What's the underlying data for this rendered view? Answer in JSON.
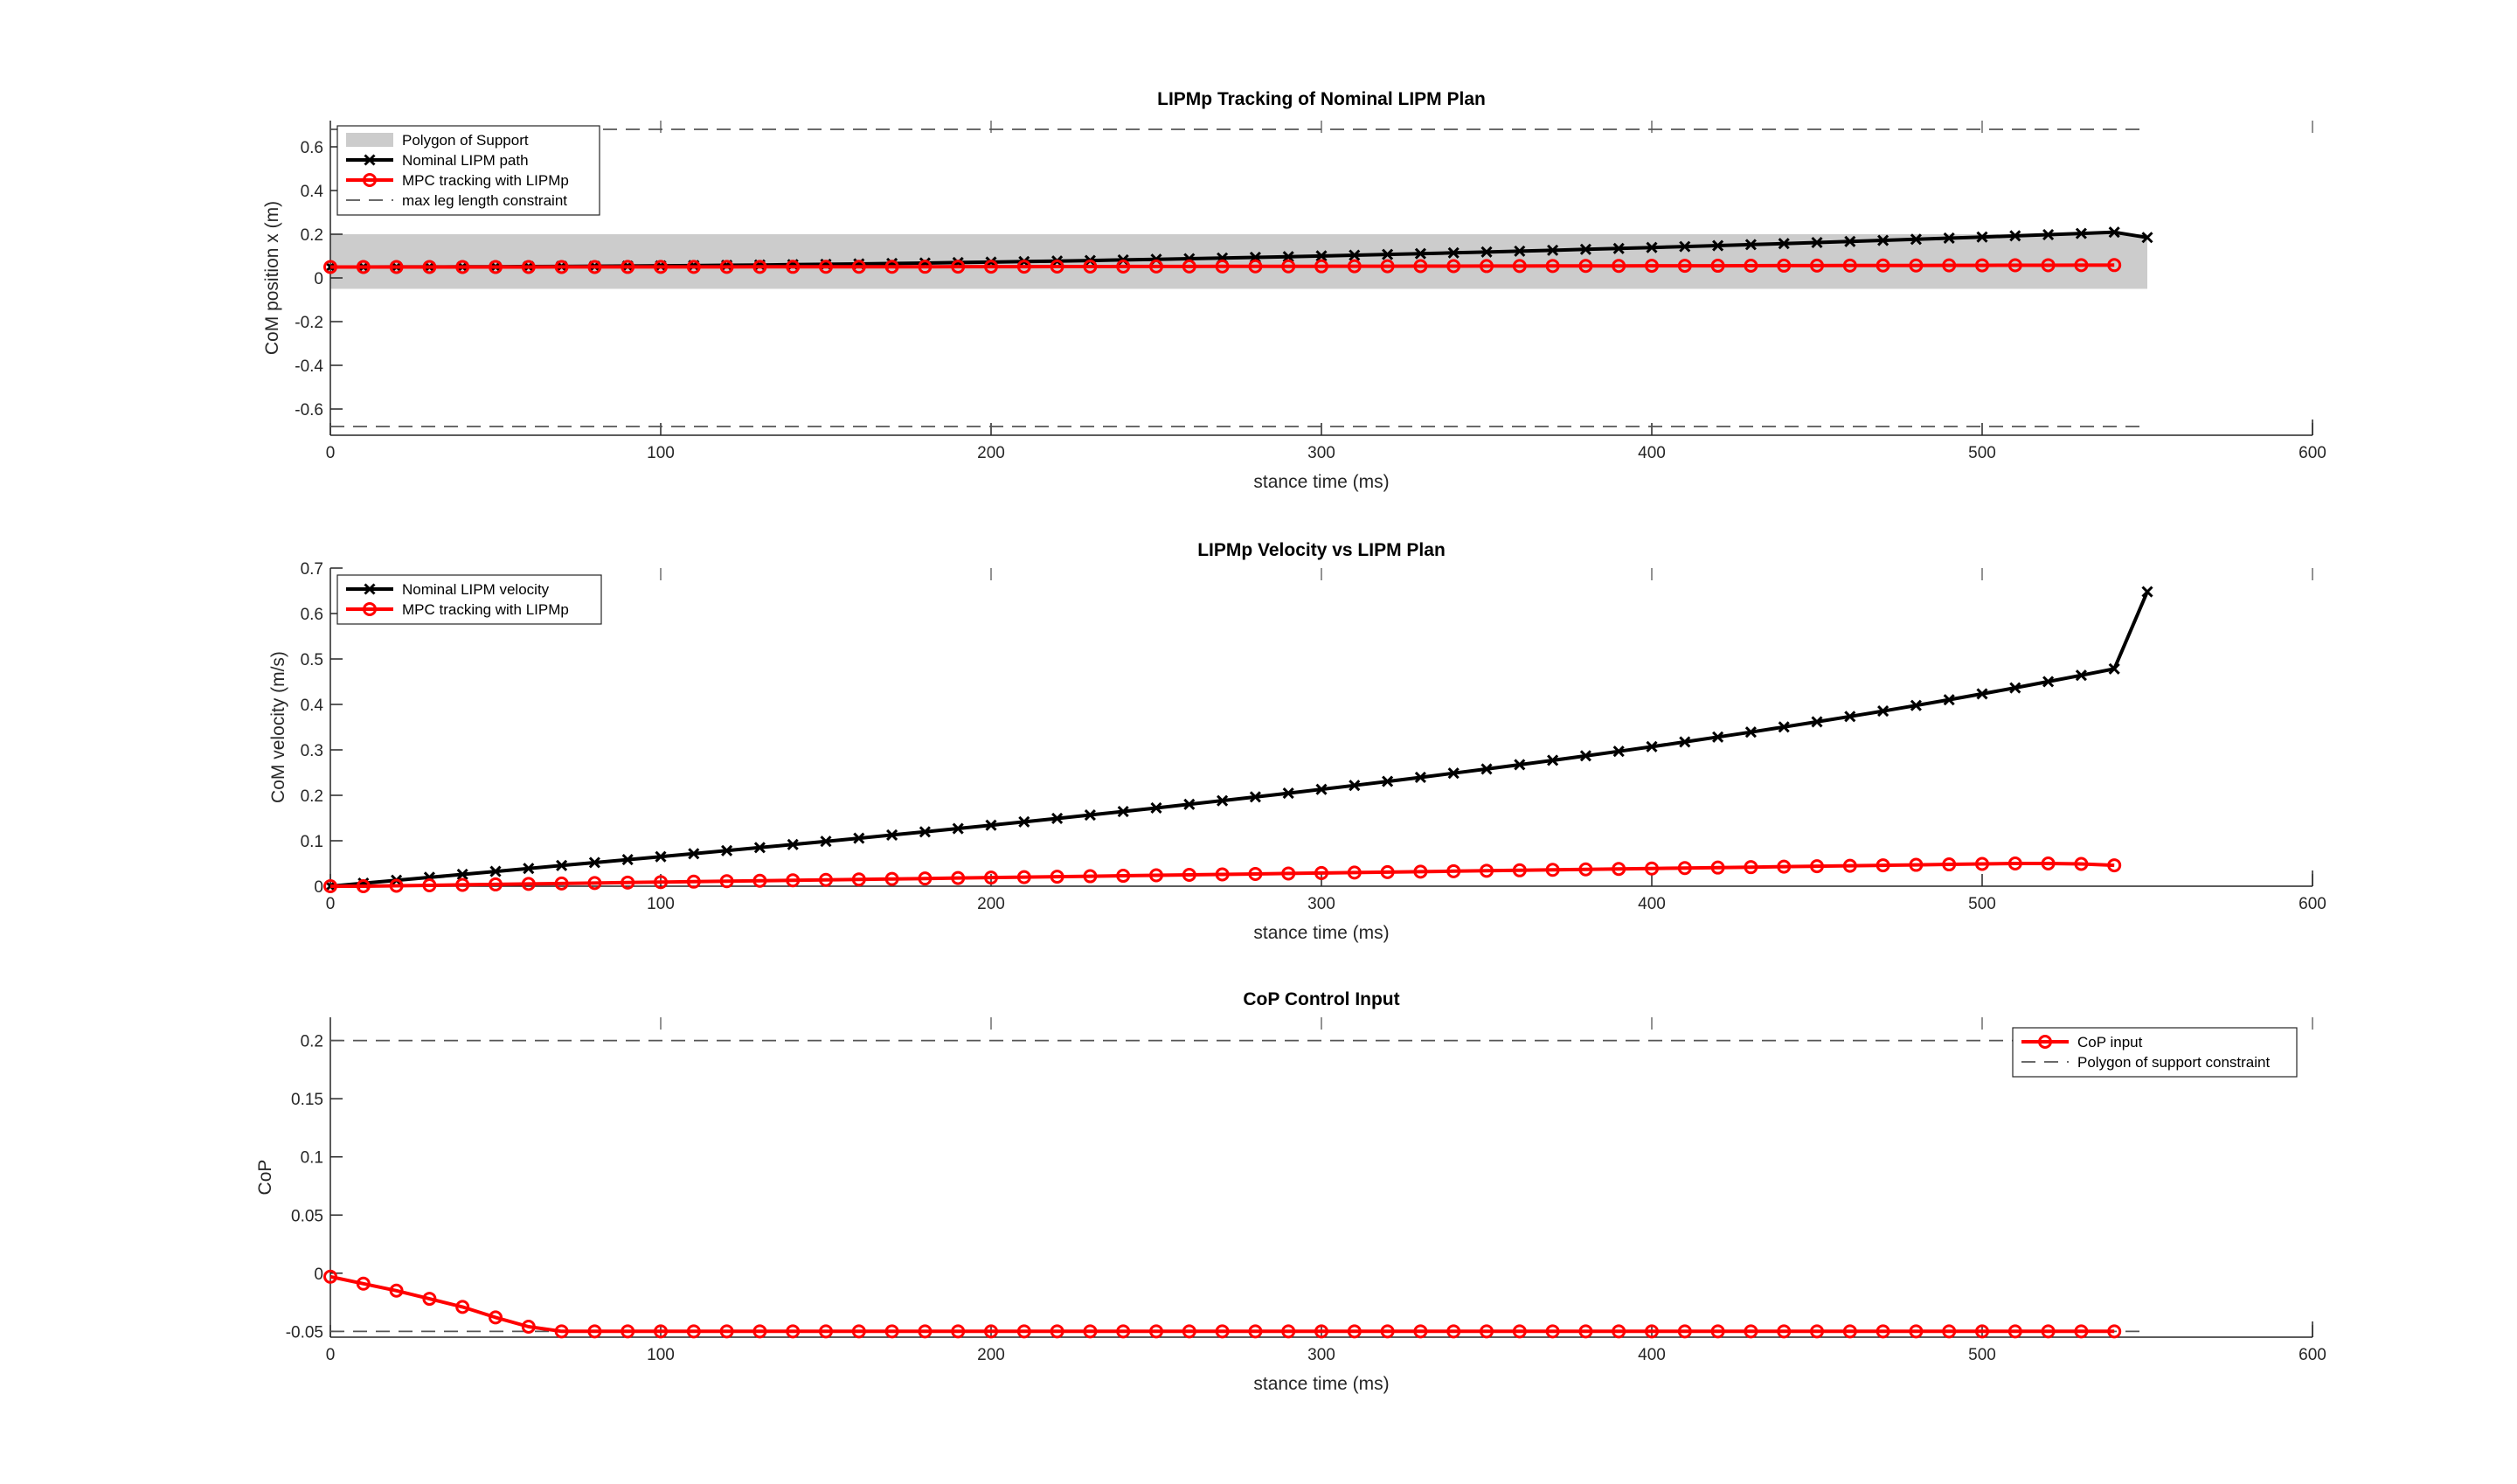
{
  "chart_data": [
    {
      "type": "line",
      "title": "LIPMp Tracking of Nominal LIPM Plan",
      "xlabel": "stance time (ms)",
      "ylabel": "CoM position x (m)",
      "xlim": [
        0,
        600
      ],
      "ylim": [
        -0.72,
        0.72
      ],
      "xticks": [
        0,
        100,
        200,
        300,
        400,
        500,
        600
      ],
      "yticks": [
        -0.6,
        -0.4,
        -0.2,
        0,
        0.2,
        0.4,
        0.6
      ],
      "xtick_labels": [
        "0",
        "100",
        "200",
        "300",
        "400",
        "500",
        "600"
      ],
      "ytick_labels": [
        "-0.6",
        "-0.4",
        "-0.2",
        "0",
        "0.2",
        "0.4",
        "0.6"
      ],
      "grid": false,
      "legend_position": "top-left",
      "series": [
        {
          "name": "Polygon of Support",
          "kind": "band",
          "color": "#cccccc",
          "x": [
            0,
            550
          ],
          "y_low": -0.05,
          "y_high": 0.2
        },
        {
          "name": "Nominal LIPM path",
          "kind": "line",
          "color": "#000000",
          "marker": "x",
          "x": [
            0,
            10,
            20,
            30,
            40,
            50,
            60,
            70,
            80,
            90,
            100,
            110,
            120,
            130,
            140,
            150,
            160,
            170,
            180,
            190,
            200,
            210,
            220,
            230,
            240,
            250,
            260,
            270,
            280,
            290,
            300,
            310,
            320,
            330,
            340,
            350,
            360,
            370,
            380,
            390,
            400,
            410,
            420,
            430,
            440,
            450,
            460,
            470,
            480,
            490,
            500,
            510,
            520,
            530,
            540,
            550
          ],
          "y": [
            0.05,
            0.0501,
            0.0502,
            0.0504,
            0.0508,
            0.0513,
            0.0519,
            0.0526,
            0.0534,
            0.0543,
            0.0554,
            0.0566,
            0.0579,
            0.0593,
            0.0608,
            0.0624,
            0.0642,
            0.0661,
            0.0681,
            0.0702,
            0.0724,
            0.0747,
            0.0772,
            0.0797,
            0.0823,
            0.0851,
            0.088,
            0.091,
            0.0941,
            0.0973,
            0.1006,
            0.104,
            0.1075,
            0.1111,
            0.1148,
            0.1186,
            0.1225,
            0.1265,
            0.1306,
            0.1348,
            0.1391,
            0.1435,
            0.1479,
            0.1525,
            0.1572,
            0.162,
            0.1669,
            0.1719,
            0.1769,
            0.1821,
            0.1873,
            0.1926,
            0.198,
            0.2035,
            0.2091,
            0.185
          ]
        },
        {
          "name": "MPC tracking with LIPMp",
          "kind": "line",
          "color": "#ff0000",
          "marker": "o",
          "x": [
            0,
            10,
            20,
            30,
            40,
            50,
            60,
            70,
            80,
            90,
            100,
            110,
            120,
            130,
            140,
            150,
            160,
            170,
            180,
            190,
            200,
            210,
            220,
            230,
            240,
            250,
            260,
            270,
            280,
            290,
            300,
            310,
            320,
            330,
            340,
            350,
            360,
            370,
            380,
            390,
            400,
            410,
            420,
            430,
            440,
            450,
            460,
            470,
            480,
            490,
            500,
            510,
            520,
            530,
            540
          ],
          "y": [
            0.05,
            0.05,
            0.05,
            0.05,
            0.05,
            0.0501,
            0.0501,
            0.0502,
            0.0502,
            0.0503,
            0.0504,
            0.0505,
            0.0506,
            0.0507,
            0.0508,
            0.0509,
            0.051,
            0.0512,
            0.0513,
            0.0514,
            0.0516,
            0.0517,
            0.0519,
            0.052,
            0.0522,
            0.0524,
            0.0525,
            0.0527,
            0.0529,
            0.0531,
            0.0533,
            0.0535,
            0.0537,
            0.0539,
            0.0541,
            0.0543,
            0.0545,
            0.0547,
            0.0549,
            0.0551,
            0.0554,
            0.0556,
            0.0558,
            0.056,
            0.0563,
            0.0565,
            0.0567,
            0.057,
            0.0572,
            0.0575,
            0.0577,
            0.058,
            0.0582,
            0.0585,
            0.0588
          ]
        },
        {
          "name": "max leg length constraint",
          "kind": "dashed",
          "color": "#555555",
          "x": [
            0,
            550
          ],
          "y_values": [
            0.68,
            -0.68
          ]
        }
      ]
    },
    {
      "type": "line",
      "title": "LIPMp Velocity vs  LIPM Plan",
      "xlabel": "stance time (ms)",
      "ylabel": "CoM velocity (m/s)",
      "xlim": [
        0,
        600
      ],
      "ylim": [
        0,
        0.7
      ],
      "xticks": [
        0,
        100,
        200,
        300,
        400,
        500,
        600
      ],
      "yticks": [
        0,
        0.1,
        0.2,
        0.3,
        0.4,
        0.5,
        0.6,
        0.7
      ],
      "xtick_labels": [
        "0",
        "100",
        "200",
        "300",
        "400",
        "500",
        "600"
      ],
      "ytick_labels": [
        "0",
        "0.1",
        "0.2",
        "0.3",
        "0.4",
        "0.5",
        "0.6",
        "0.7"
      ],
      "grid": false,
      "legend_position": "top-left",
      "series": [
        {
          "name": "Nominal LIPM velocity",
          "kind": "line",
          "color": "#000000",
          "marker": "x",
          "x": [
            0,
            10,
            20,
            30,
            40,
            50,
            60,
            70,
            80,
            90,
            100,
            110,
            120,
            130,
            140,
            150,
            160,
            170,
            180,
            190,
            200,
            210,
            220,
            230,
            240,
            250,
            260,
            270,
            280,
            290,
            300,
            310,
            320,
            330,
            340,
            350,
            360,
            370,
            380,
            390,
            400,
            410,
            420,
            430,
            440,
            450,
            460,
            470,
            480,
            490,
            500,
            510,
            520,
            530,
            540,
            550
          ],
          "y": [
            0,
            0.0065,
            0.013,
            0.0195,
            0.026,
            0.0325,
            0.039,
            0.0455,
            0.052,
            0.0585,
            0.065,
            0.0716,
            0.0783,
            0.085,
            0.0918,
            0.0987,
            0.1056,
            0.1126,
            0.1197,
            0.1269,
            0.1342,
            0.1416,
            0.1491,
            0.1567,
            0.1644,
            0.1722,
            0.1801,
            0.1882,
            0.1964,
            0.2047,
            0.2132,
            0.2218,
            0.2306,
            0.2395,
            0.2486,
            0.2579,
            0.2674,
            0.277,
            0.2868,
            0.2968,
            0.307,
            0.3175,
            0.3282,
            0.3391,
            0.3503,
            0.3617,
            0.3734,
            0.3854,
            0.3977,
            0.4103,
            0.4232,
            0.4365,
            0.4501,
            0.464,
            0.4783,
            0.648
          ]
        },
        {
          "name": "MPC tracking with LIPMp",
          "kind": "line",
          "color": "#ff0000",
          "marker": "o",
          "x": [
            0,
            10,
            20,
            30,
            40,
            50,
            60,
            70,
            80,
            90,
            100,
            110,
            120,
            130,
            140,
            150,
            160,
            170,
            180,
            190,
            200,
            210,
            220,
            230,
            240,
            250,
            260,
            270,
            280,
            290,
            300,
            310,
            320,
            330,
            340,
            350,
            360,
            370,
            380,
            390,
            400,
            410,
            420,
            430,
            440,
            450,
            460,
            470,
            480,
            490,
            500,
            510,
            520,
            530,
            540
          ],
          "y": [
            0,
            0,
            0.001,
            0.002,
            0.003,
            0.004,
            0.005,
            0.006,
            0.007,
            0.008,
            0.009,
            0.01,
            0.011,
            0.012,
            0.013,
            0.014,
            0.015,
            0.016,
            0.017,
            0.018,
            0.019,
            0.02,
            0.021,
            0.022,
            0.023,
            0.024,
            0.025,
            0.026,
            0.027,
            0.028,
            0.029,
            0.03,
            0.031,
            0.032,
            0.033,
            0.034,
            0.035,
            0.036,
            0.037,
            0.038,
            0.039,
            0.04,
            0.041,
            0.042,
            0.043,
            0.044,
            0.045,
            0.046,
            0.047,
            0.048,
            0.049,
            0.05,
            0.05,
            0.049,
            0.046
          ]
        }
      ]
    },
    {
      "type": "line",
      "title": "CoP Control Input",
      "xlabel": "stance time (ms)",
      "ylabel": "CoP",
      "xlim": [
        0,
        600
      ],
      "ylim": [
        -0.055,
        0.22
      ],
      "xticks": [
        0,
        100,
        200,
        300,
        400,
        500,
        600
      ],
      "yticks": [
        -0.05,
        0,
        0.05,
        0.1,
        0.15,
        0.2
      ],
      "xtick_labels": [
        "0",
        "100",
        "200",
        "300",
        "400",
        "500",
        "600"
      ],
      "ytick_labels": [
        "-0.05",
        "0",
        "0.05",
        "0.1",
        "0.15",
        "0.2"
      ],
      "grid": false,
      "legend_position": "top-right",
      "series": [
        {
          "name": "CoP input",
          "kind": "line",
          "color": "#ff0000",
          "marker": "o",
          "x": [
            0,
            10,
            20,
            30,
            40,
            50,
            60,
            70,
            80,
            90,
            100,
            110,
            120,
            130,
            140,
            150,
            160,
            170,
            180,
            190,
            200,
            210,
            220,
            230,
            240,
            250,
            260,
            270,
            280,
            290,
            300,
            310,
            320,
            330,
            340,
            350,
            360,
            370,
            380,
            390,
            400,
            410,
            420,
            430,
            440,
            450,
            460,
            470,
            480,
            490,
            500,
            510,
            520,
            530,
            540
          ],
          "y": [
            -0.003,
            -0.009,
            -0.015,
            -0.022,
            -0.029,
            -0.038,
            -0.046,
            -0.05,
            -0.05,
            -0.05,
            -0.05,
            -0.05,
            -0.05,
            -0.05,
            -0.05,
            -0.05,
            -0.05,
            -0.05,
            -0.05,
            -0.05,
            -0.05,
            -0.05,
            -0.05,
            -0.05,
            -0.05,
            -0.05,
            -0.05,
            -0.05,
            -0.05,
            -0.05,
            -0.05,
            -0.05,
            -0.05,
            -0.05,
            -0.05,
            -0.05,
            -0.05,
            -0.05,
            -0.05,
            -0.05,
            -0.05,
            -0.05,
            -0.05,
            -0.05,
            -0.05,
            -0.05,
            -0.05,
            -0.05,
            -0.05,
            -0.05,
            -0.05,
            -0.05,
            -0.05,
            -0.05,
            -0.05
          ]
        },
        {
          "name": "Polygon of support constraint",
          "kind": "dashed",
          "color": "#555555",
          "x": [
            0,
            550
          ],
          "y_values": [
            0.2,
            -0.05
          ]
        }
      ]
    }
  ]
}
